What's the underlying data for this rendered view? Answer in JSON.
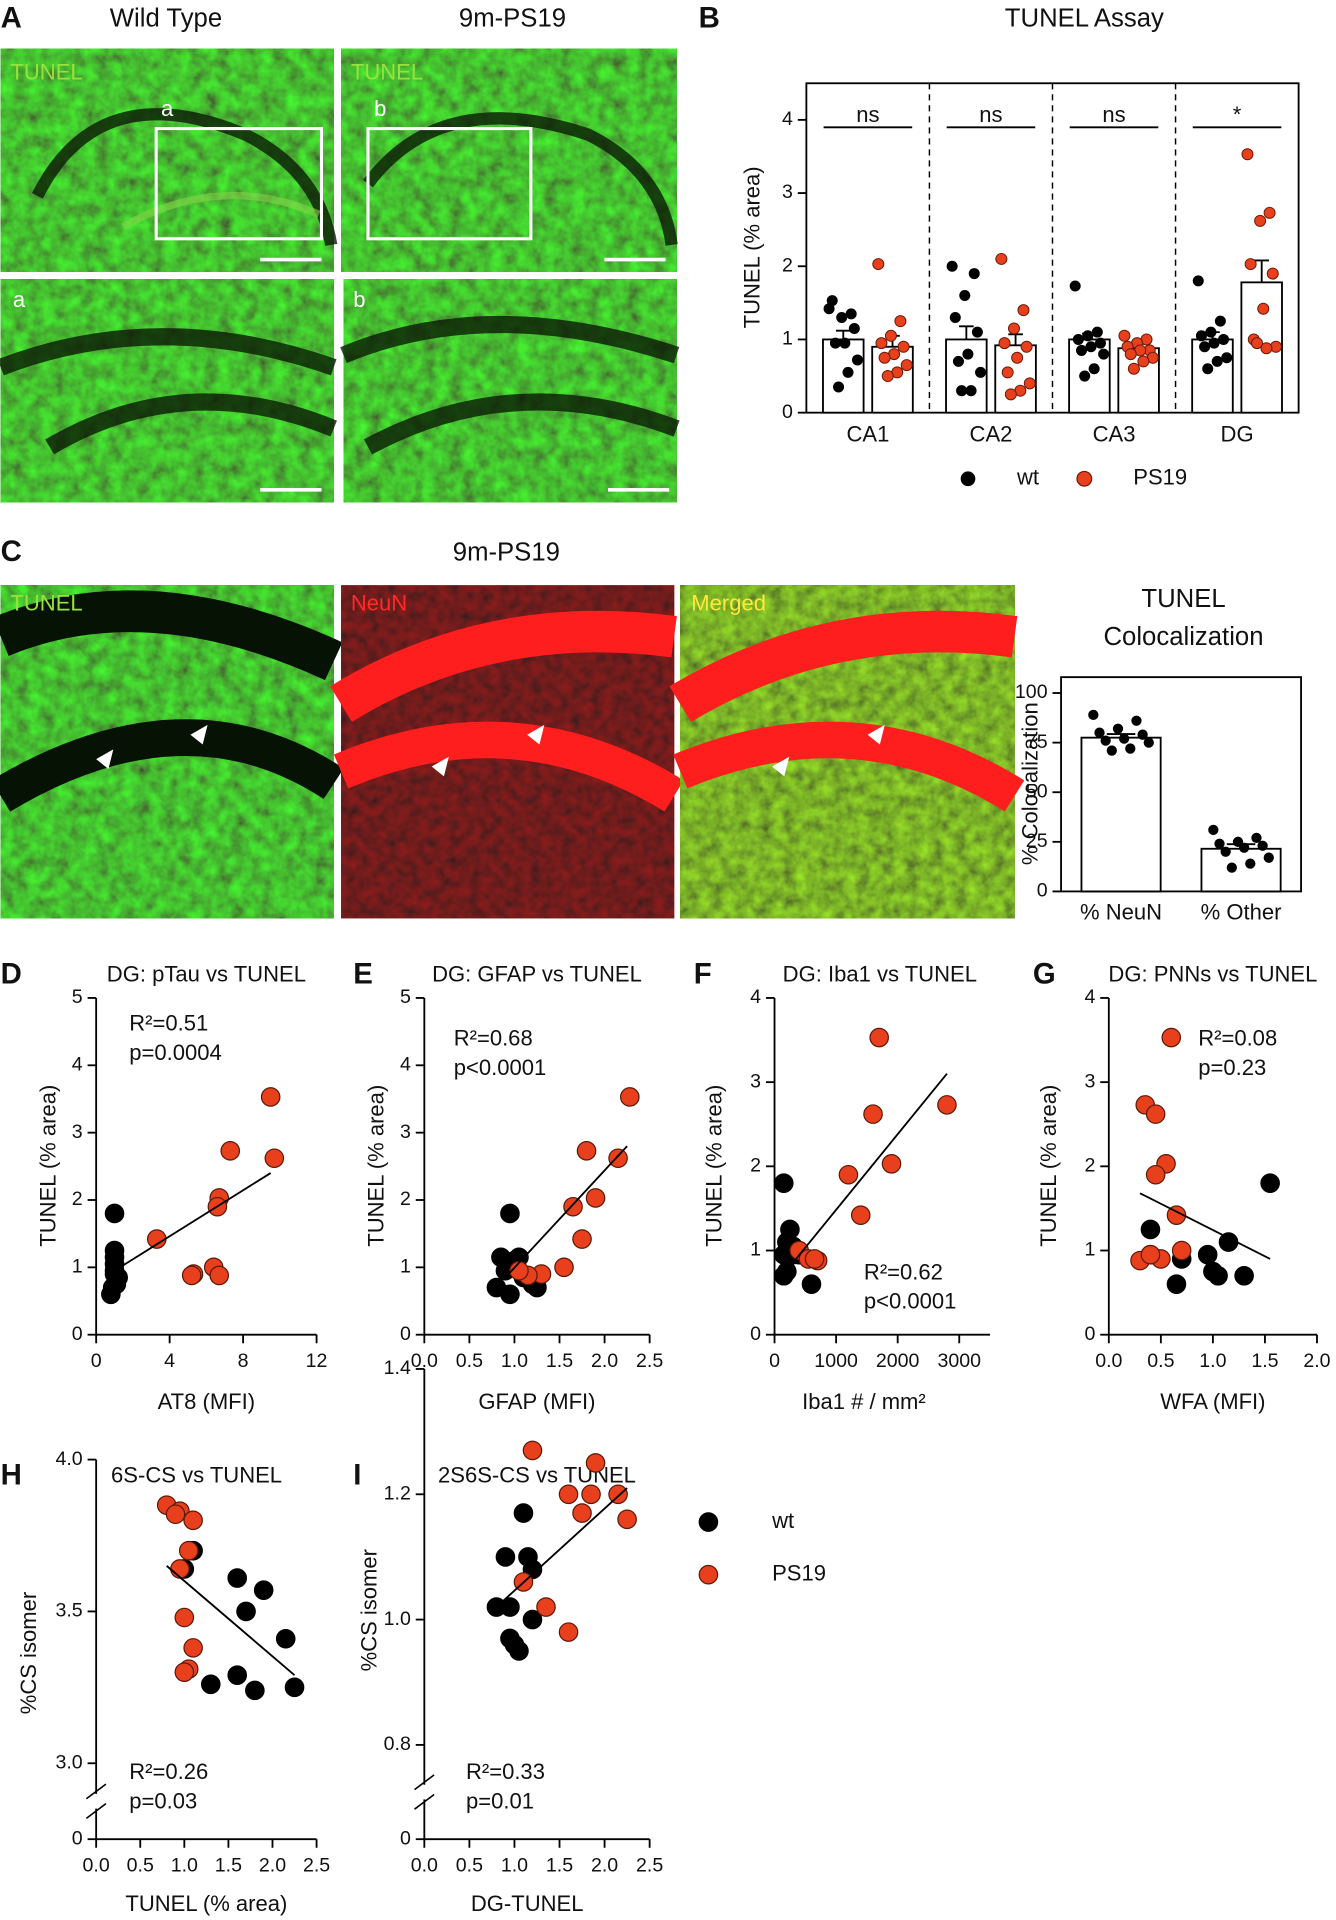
{
  "panel_letters": [
    "A",
    "B",
    "C",
    "D",
    "E",
    "F",
    "G",
    "H",
    "I"
  ],
  "figure_a": {
    "columns": [
      "Wild Type",
      "9m-PS19"
    ],
    "stain": "TUNEL",
    "insets": [
      "a",
      "b"
    ]
  },
  "figure_c": {
    "title": "9m-PS19",
    "channels": [
      "TUNEL",
      "NeuN",
      "Merged"
    ]
  },
  "chart_data": [
    {
      "type": "bar",
      "title": "TUNEL Assay",
      "y_label": "TUNEL (% area)",
      "categories": [
        "CA1",
        "CA2",
        "CA3",
        "DG"
      ],
      "ylim": [
        0,
        4.5
      ],
      "yticks": [
        0,
        1,
        2,
        3,
        4
      ],
      "bar_color": "#ffffff",
      "group_dividers": true,
      "significance": [
        "ns",
        "ns",
        "ns",
        "*"
      ],
      "legend": "bottom",
      "series": [
        {
          "name": "wt",
          "color": "#000000",
          "values": [
            1.0,
            1.0,
            1.0,
            1.0
          ],
          "errors": [
            0.12,
            0.18,
            0.08,
            0.1
          ],
          "points": [
            [
              1.42,
              1.35,
              1.3,
              1.53,
              1.15,
              0.95,
              0.95,
              0.72,
              0.55,
              0.35
            ],
            [
              2.0,
              1.9,
              1.6,
              1.3,
              1.1,
              0.8,
              0.7,
              0.55,
              0.3,
              0.3
            ],
            [
              1.73,
              1.1,
              1.05,
              1.0,
              0.95,
              0.9,
              0.85,
              0.8,
              0.6,
              0.5
            ],
            [
              1.8,
              1.25,
              1.1,
              1.05,
              1.0,
              0.95,
              0.9,
              0.75,
              0.7,
              0.6
            ]
          ]
        },
        {
          "name": "PS19",
          "color": "#e8401c",
          "values": [
            0.9,
            0.92,
            0.88,
            1.78
          ],
          "errors": [
            0.15,
            0.15,
            0.06,
            0.3
          ],
          "points": [
            [
              2.03,
              1.25,
              1.05,
              0.95,
              0.9,
              0.8,
              0.75,
              0.65,
              0.55,
              0.5
            ],
            [
              2.1,
              1.4,
              1.15,
              0.95,
              0.9,
              0.75,
              0.55,
              0.4,
              0.3,
              0.25
            ],
            [
              1.05,
              1.0,
              0.95,
              0.9,
              0.85,
              0.85,
              0.8,
              0.75,
              0.7,
              0.6
            ],
            [
              3.53,
              2.73,
              2.62,
              2.03,
              1.9,
              1.42,
              1.0,
              0.9,
              0.88,
              0.95
            ]
          ]
        }
      ]
    },
    {
      "type": "bar",
      "title": [
        "TUNEL",
        "Colocalization"
      ],
      "y_label": "% Colocalization",
      "categories": [
        "% NeuN",
        "% Other"
      ],
      "ylim": [
        0,
        108
      ],
      "yticks": [
        0,
        25,
        50,
        75,
        100
      ],
      "bar_color": "#ffffff",
      "color": "#000000",
      "values": [
        77.5,
        21.5
      ],
      "errors": [
        1.8,
        2.3
      ],
      "points": [
        [
          89,
          86,
          82,
          80,
          79,
          77,
          76,
          75,
          72,
          71
        ],
        [
          31,
          27,
          25,
          24,
          23,
          22,
          20,
          17,
          14,
          12
        ]
      ]
    },
    {
      "type": "scatter",
      "title": "DG: pTau vs TUNEL",
      "x_label": "AT8 (MFI)",
      "y_label": "TUNEL (% area)",
      "xlim": [
        0,
        12
      ],
      "xticks": [
        0,
        4,
        8,
        12
      ],
      "ylim": [
        0,
        5
      ],
      "yticks": [
        0,
        1,
        2,
        3,
        4,
        5
      ],
      "annotations": [
        "R²=0.51",
        "p=0.0004"
      ],
      "series": [
        {
          "name": "wt",
          "color": "#000000",
          "x": [
            1,
            1,
            1,
            1,
            1,
            1,
            1.1,
            0.9,
            0.8,
            1.2
          ],
          "values": [
            1.8,
            1.25,
            1.15,
            1.05,
            0.95,
            0.9,
            0.75,
            0.7,
            0.6,
            0.85
          ]
        },
        {
          "name": "PS19",
          "color": "#e8401c",
          "x": [
            9.5,
            9.7,
            7.3,
            6.7,
            6.6,
            3.3,
            6.4,
            5.3,
            5.2,
            6.7
          ],
          "values": [
            3.53,
            2.62,
            2.73,
            2.03,
            1.9,
            1.42,
            1.0,
            0.9,
            0.88,
            0.88
          ]
        }
      ],
      "fit": {
        "x": [
          1,
          9.5
        ],
        "values": [
          0.95,
          2.4
        ]
      }
    },
    {
      "type": "scatter",
      "title": "DG: GFAP vs TUNEL",
      "x_label": "GFAP (MFI)",
      "y_label": "TUNEL (% area)",
      "xlim": [
        0,
        2.5
      ],
      "xticks": [
        {
          "value": 0,
          "label": "0.0"
        },
        0.5,
        {
          "value": 1,
          "label": "1.0"
        },
        1.5,
        {
          "value": 2,
          "label": "2.0"
        },
        2.5
      ],
      "ylim": [
        0,
        5
      ],
      "yticks": [
        0,
        1,
        2,
        3,
        4,
        5
      ],
      "annotations": [
        "R²=0.68",
        "p<0.0001"
      ],
      "series": [
        {
          "name": "wt",
          "color": "#000000",
          "x": [
            0.95,
            0.85,
            1.0,
            1.05,
            0.9,
            1.1,
            1.2,
            0.8,
            0.95,
            1.25
          ],
          "values": [
            1.8,
            1.15,
            1.1,
            1.15,
            0.95,
            0.85,
            0.75,
            0.7,
            0.6,
            0.7
          ]
        },
        {
          "name": "PS19",
          "color": "#e8401c",
          "x": [
            2.28,
            2.15,
            1.8,
            1.9,
            1.65,
            1.75,
            1.55,
            1.3,
            1.15,
            1.05
          ],
          "values": [
            3.53,
            2.62,
            2.73,
            2.03,
            1.9,
            1.42,
            1.0,
            0.9,
            0.88,
            0.95
          ]
        }
      ],
      "fit": {
        "x": [
          0.9,
          2.25
        ],
        "values": [
          0.85,
          2.8
        ]
      }
    },
    {
      "type": "scatter",
      "title": "DG: Iba1 vs TUNEL",
      "x_label": "Iba1 # / mm²",
      "y_label": "TUNEL (% area)",
      "xlim": [
        0,
        3500
      ],
      "xticks": [
        0,
        1000,
        2000,
        3000
      ],
      "ylim": [
        0,
        4
      ],
      "yticks": [
        0,
        1,
        2,
        3,
        4
      ],
      "annotations": [
        "R²=0.62",
        "p<0.0001"
      ],
      "series": [
        {
          "name": "wt",
          "color": "#000000",
          "x": [
            150,
            250,
            200,
            300,
            150,
            300,
            200,
            150,
            600,
            400
          ],
          "values": [
            1.8,
            1.25,
            1.1,
            1.05,
            0.95,
            0.95,
            0.75,
            0.7,
            0.6,
            0.95
          ]
        },
        {
          "name": "PS19",
          "color": "#e8401c",
          "x": [
            1700,
            1600,
            2800,
            1900,
            1200,
            1400,
            400,
            550,
            700,
            650
          ],
          "values": [
            3.53,
            2.62,
            2.73,
            2.03,
            1.9,
            1.42,
            1.0,
            0.9,
            0.88,
            0.9
          ]
        }
      ],
      "fit": {
        "x": [
          150,
          2800
        ],
        "values": [
          0.72,
          3.1
        ]
      }
    },
    {
      "type": "scatter",
      "title": "DG: PNNs vs TUNEL",
      "x_label": "WFA (MFI)",
      "y_label": "TUNEL (% area)",
      "xlim": [
        0,
        2
      ],
      "xticks": [
        {
          "value": 0,
          "label": "0.0"
        },
        0.5,
        {
          "value": 1,
          "label": "1.0"
        },
        1.5,
        {
          "value": 2,
          "label": "2.0"
        }
      ],
      "ylim": [
        0,
        4
      ],
      "yticks": [
        0,
        1,
        2,
        3,
        4
      ],
      "annotations": [
        "R²=0.08",
        "p=0.23"
      ],
      "series": [
        {
          "name": "wt",
          "color": "#000000",
          "x": [
            1.55,
            0.4,
            0.4,
            0.7,
            0.95,
            1.0,
            1.05,
            1.3,
            0.65,
            1.15
          ],
          "values": [
            1.8,
            1.25,
            0.95,
            0.9,
            0.95,
            0.75,
            0.7,
            0.7,
            0.6,
            1.1
          ]
        },
        {
          "name": "PS19",
          "color": "#e8401c",
          "x": [
            0.6,
            0.35,
            0.45,
            0.55,
            0.45,
            0.65,
            0.7,
            0.5,
            0.3,
            0.4
          ],
          "values": [
            3.53,
            2.73,
            2.62,
            2.03,
            1.9,
            1.42,
            1.0,
            0.9,
            0.88,
            0.95
          ]
        }
      ],
      "fit": {
        "x": [
          0.3,
          1.55
        ],
        "values": [
          1.68,
          0.9
        ]
      }
    },
    {
      "type": "scatter",
      "title": "6S-CS vs TUNEL",
      "x_label": "TUNEL (% area)",
      "y_label": "%CS isomer",
      "xlim": [
        0,
        2.5
      ],
      "xticks": [
        {
          "value": 0,
          "label": "0.0"
        },
        0.5,
        {
          "value": 1,
          "label": "1.0"
        },
        1.5,
        {
          "value": 2,
          "label": "2.0"
        },
        2.5
      ],
      "ylim": [
        0,
        4
      ],
      "ybreak": [
        0,
        3
      ],
      "yticks": [
        0,
        {
          "value": 3,
          "label": "3.0"
        },
        3.5,
        {
          "value": 4,
          "label": "4.0"
        }
      ],
      "annotations": [
        "R²=0.26",
        "p=0.03"
      ],
      "legend": "right",
      "series": [
        {
          "name": "wt",
          "color": "#000000",
          "x": [
            1.1,
            1.0,
            1.6,
            1.9,
            1.7,
            2.15,
            1.3,
            1.6,
            1.8,
            2.25
          ],
          "values": [
            3.7,
            3.64,
            3.61,
            3.57,
            3.5,
            3.41,
            3.26,
            3.29,
            3.24,
            3.25
          ]
        },
        {
          "name": "PS19",
          "color": "#e8401c",
          "x": [
            0.8,
            0.95,
            0.9,
            1.1,
            1.05,
            0.95,
            1.0,
            1.1,
            1.05,
            1.0
          ],
          "values": [
            3.85,
            3.83,
            3.82,
            3.8,
            3.7,
            3.64,
            3.48,
            3.38,
            3.31,
            3.3
          ]
        }
      ],
      "fit": {
        "x": [
          0.8,
          2.25
        ],
        "values": [
          3.65,
          3.29
        ]
      }
    },
    {
      "type": "scatter",
      "title": "2S6S-CS vs TUNEL",
      "x_label": "DG-TUNEL",
      "y_label": "%CS isomer",
      "xlim": [
        0,
        2.5
      ],
      "xticks": [
        {
          "value": 0,
          "label": "0.0"
        },
        0.5,
        {
          "value": 1,
          "label": "1.0"
        },
        1.5,
        {
          "value": 2,
          "label": "2.0"
        },
        2.5
      ],
      "ylim": [
        0,
        1.4
      ],
      "ybreak": [
        0,
        0.8
      ],
      "yticks": [
        0,
        0.8,
        {
          "value": 1,
          "label": "1.0"
        },
        1.2,
        1.4
      ],
      "annotations": [
        "R²=0.33",
        "p=0.01"
      ],
      "series": [
        {
          "name": "wt",
          "color": "#000000",
          "x": [
            1.1,
            0.9,
            1.15,
            1.2,
            0.8,
            0.95,
            1.2,
            0.95,
            1.0,
            1.05
          ],
          "values": [
            1.17,
            1.1,
            1.1,
            1.08,
            1.02,
            1.02,
            1.0,
            0.97,
            0.96,
            0.95
          ]
        },
        {
          "name": "PS19",
          "color": "#e8401c",
          "x": [
            1.2,
            1.9,
            1.6,
            1.75,
            1.85,
            2.15,
            2.25,
            1.35,
            1.6,
            1.1
          ],
          "values": [
            1.27,
            1.25,
            1.2,
            1.17,
            1.2,
            1.2,
            1.16,
            1.02,
            0.98,
            1.06
          ]
        }
      ],
      "fit": {
        "x": [
          0.8,
          2.25
        ],
        "values": [
          1.02,
          1.21
        ]
      }
    }
  ]
}
